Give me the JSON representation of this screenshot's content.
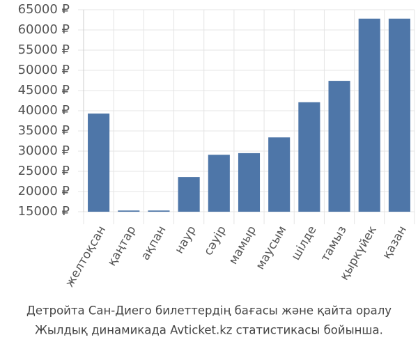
{
  "chart_data": {
    "type": "bar",
    "categories": [
      "желтоқсан",
      "қаңтар",
      "ақпан",
      "наур",
      "сәуір",
      "мамыр",
      "маусым",
      "шілде",
      "тамыз",
      "қыркүйек",
      "қазан"
    ],
    "values": [
      39300,
      15300,
      15300,
      23600,
      29100,
      29500,
      33400,
      42100,
      47400,
      62800,
      62800
    ],
    "color": "#4e76a8",
    "ylim": [
      15000,
      65000
    ],
    "yticks": [
      {
        "value": 15000,
        "label": "15000 ₽"
      },
      {
        "value": 20000,
        "label": "20000 ₽"
      },
      {
        "value": 25000,
        "label": "25000 ₽"
      },
      {
        "value": 30000,
        "label": "30000 ₽"
      },
      {
        "value": 35000,
        "label": "35000 ₽"
      },
      {
        "value": 40000,
        "label": "40000 ₽"
      },
      {
        "value": 45000,
        "label": "45000 ₽"
      },
      {
        "value": 50000,
        "label": "50000 ₽"
      },
      {
        "value": 55000,
        "label": "55000 ₽"
      },
      {
        "value": 60000,
        "label": "60000 ₽"
      },
      {
        "value": 65000,
        "label": "65000 ₽"
      }
    ],
    "grid": true,
    "caption": [
      "Детройта Сан-Диего билеттердің бағасы және қайта оралу",
      "Жылдық динамикада Avticket.kz статистикасы бойынша."
    ]
  }
}
